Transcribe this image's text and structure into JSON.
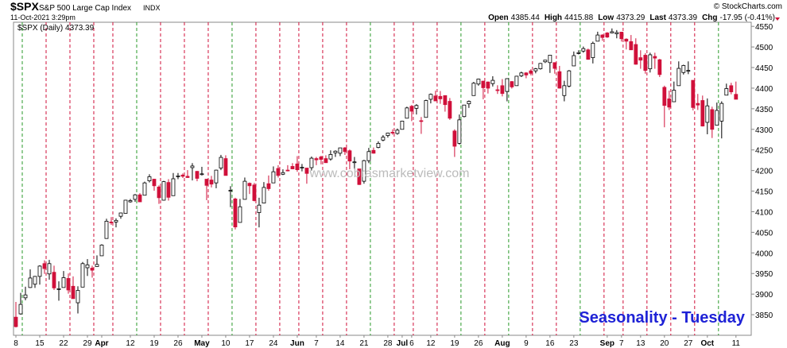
{
  "header": {
    "symbol": "$SPX",
    "name": "S&P 500 Large Cap Index",
    "exchange": "INDX",
    "date": "11-Oct-2021 3:29pm",
    "copyright": "© StockCharts.com",
    "quote": [
      {
        "label": "Open",
        "value": "4385.44"
      },
      {
        "label": "High",
        "value": "4415.88"
      },
      {
        "label": "Low",
        "value": "4373.29"
      },
      {
        "label": "Last",
        "value": "4373.39"
      },
      {
        "label": "Chg",
        "value": "-17.95 (-0.41%)"
      }
    ]
  },
  "chart_data": {
    "type": "candlestick",
    "legend": "$SPX (Daily) 4373.39",
    "watermark": "www.cobrasmarketview.com",
    "annotation": "Seasonality - Tuesday",
    "up_color": "#ffffff",
    "down_color": "#d0103a",
    "outline_color": "#000000",
    "annotation_color": "#1e22d6",
    "highlight_up_color": "#2a9a2a",
    "highlight_down_color": "#d0103a",
    "xlim": [
      -0.5,
      154.2
    ],
    "ylim": [
      3800,
      4560
    ],
    "yticks": [
      3850,
      3900,
      3950,
      4000,
      4050,
      4100,
      4150,
      4200,
      4250,
      4300,
      4350,
      4400,
      4450,
      4500,
      4550
    ],
    "xticks": [
      {
        "value": 0,
        "label": "8"
      },
      {
        "value": 5,
        "label": "15"
      },
      {
        "value": 10,
        "label": "22"
      },
      {
        "value": 15,
        "label": "29"
      },
      {
        "value": 18,
        "label": "Apr"
      },
      {
        "value": 24,
        "label": "12"
      },
      {
        "value": 29,
        "label": "19"
      },
      {
        "value": 34,
        "label": "26"
      },
      {
        "value": 39,
        "label": "May"
      },
      {
        "value": 44,
        "label": "10"
      },
      {
        "value": 49,
        "label": "17"
      },
      {
        "value": 54,
        "label": "24"
      },
      {
        "value": 59,
        "label": "Jun"
      },
      {
        "value": 63,
        "label": "7"
      },
      {
        "value": 68,
        "label": "14"
      },
      {
        "value": 73,
        "label": "21"
      },
      {
        "value": 78,
        "label": "28"
      },
      {
        "value": 81,
        "label": "Jul"
      },
      {
        "value": 83,
        "label": "6"
      },
      {
        "value": 87,
        "label": "12"
      },
      {
        "value": 92,
        "label": "19"
      },
      {
        "value": 97,
        "label": "26"
      },
      {
        "value": 102,
        "label": "Aug"
      },
      {
        "value": 107,
        "label": "9"
      },
      {
        "value": 112,
        "label": "16"
      },
      {
        "value": 117,
        "label": "23"
      },
      {
        "value": 124,
        "label": "Sep"
      },
      {
        "value": 127,
        "label": "7"
      },
      {
        "value": 131,
        "label": "13"
      },
      {
        "value": 136,
        "label": "20"
      },
      {
        "value": 141,
        "label": "27"
      },
      {
        "value": 145,
        "label": "Oct"
      },
      {
        "value": 151,
        "label": "11"
      }
    ],
    "highlight_days": [
      1,
      6,
      11,
      16,
      20,
      25,
      30,
      35,
      40,
      45,
      50,
      55,
      59,
      64,
      69,
      74,
      79,
      83,
      88,
      93,
      98,
      103,
      108,
      113,
      118,
      123,
      127,
      132,
      137,
      142,
      147
    ],
    "candles": [
      [
        3844,
        3881,
        3819,
        3821
      ],
      [
        3852,
        3903,
        3850,
        3875
      ],
      [
        3891,
        3918,
        3885,
        3898
      ],
      [
        3916,
        3960,
        3915,
        3939
      ],
      [
        3924,
        3944,
        3915,
        3943
      ],
      [
        3943,
        3970,
        3923,
        3968
      ],
      [
        3974,
        3982,
        3949,
        3962
      ],
      [
        3949,
        3983,
        3935,
        3974
      ],
      [
        3953,
        3969,
        3910,
        3915
      ],
      [
        3913,
        3931,
        3884,
        3913
      ],
      [
        3916,
        3956,
        3916,
        3940
      ],
      [
        3938,
        3950,
        3901,
        3910
      ],
      [
        3919,
        3943,
        3889,
        3889
      ],
      [
        3879,
        3919,
        3853,
        3909
      ],
      [
        3917,
        3978,
        3917,
        3974
      ],
      [
        3964,
        3985,
        3944,
        3971
      ],
      [
        3963,
        3969,
        3940,
        3958
      ],
      [
        3967,
        3994,
        3967,
        3972
      ],
      [
        3993,
        4021,
        3993,
        4019
      ],
      [
        4035,
        4083,
        4035,
        4077
      ],
      [
        4075,
        4087,
        4068,
        4073
      ],
      [
        4075,
        4084,
        4062,
        4079
      ],
      [
        4089,
        4098,
        4083,
        4097
      ],
      [
        4096,
        4129,
        4095,
        4128
      ],
      [
        4124,
        4131,
        4122,
        4127
      ],
      [
        4130,
        4143,
        4124,
        4141
      ],
      [
        4141,
        4145,
        4124,
        4124
      ],
      [
        4140,
        4173,
        4140,
        4170
      ],
      [
        4175,
        4191,
        4171,
        4185
      ],
      [
        4179,
        4180,
        4151,
        4163
      ],
      [
        4160,
        4164,
        4119,
        4134
      ],
      [
        4128,
        4175,
        4127,
        4173
      ],
      [
        4171,
        4179,
        4127,
        4135
      ],
      [
        4139,
        4194,
        4139,
        4180
      ],
      [
        4185,
        4194,
        4179,
        4187
      ],
      [
        4189,
        4193,
        4182,
        4186
      ],
      [
        4186,
        4201,
        4182,
        4183
      ],
      [
        4207,
        4218,
        4176,
        4211
      ],
      [
        4198,
        4199,
        4174,
        4181
      ],
      [
        4192,
        4209,
        4188,
        4192
      ],
      [
        4179,
        4179,
        4128,
        4164
      ],
      [
        4177,
        4187,
        4159,
        4167
      ],
      [
        4170,
        4202,
        4157,
        4201
      ],
      [
        4206,
        4238,
        4201,
        4232
      ],
      [
        4229,
        4237,
        4188,
        4188
      ],
      [
        4150,
        4162,
        4111,
        4152
      ],
      [
        4131,
        4134,
        4057,
        4063
      ],
      [
        4074,
        4131,
        4074,
        4112
      ],
      [
        4130,
        4183,
        4130,
        4174
      ],
      [
        4169,
        4171,
        4143,
        4163
      ],
      [
        4165,
        4170,
        4125,
        4127
      ],
      [
        4098,
        4134,
        4062,
        4116
      ],
      [
        4121,
        4172,
        4121,
        4159
      ],
      [
        4168,
        4188,
        4151,
        4156
      ],
      [
        4170,
        4210,
        4170,
        4197
      ],
      [
        4205,
        4213,
        4183,
        4188
      ],
      [
        4191,
        4203,
        4189,
        4195
      ],
      [
        4201,
        4213,
        4198,
        4200
      ],
      [
        4210,
        4218,
        4203,
        4204
      ],
      [
        4216,
        4235,
        4197,
        4202
      ],
      [
        4206,
        4216,
        4198,
        4208
      ],
      [
        4206,
        4206,
        4168,
        4193
      ],
      [
        4207,
        4234,
        4200,
        4230
      ],
      [
        4229,
        4233,
        4213,
        4226
      ],
      [
        4233,
        4236,
        4215,
        4227
      ],
      [
        4229,
        4237,
        4219,
        4219
      ],
      [
        4228,
        4249,
        4224,
        4239
      ],
      [
        4243,
        4249,
        4233,
        4247
      ],
      [
        4242,
        4255,
        4235,
        4255
      ],
      [
        4255,
        4257,
        4238,
        4246
      ],
      [
        4248,
        4251,
        4203,
        4223
      ],
      [
        4220,
        4233,
        4204,
        4221
      ],
      [
        4204,
        4204,
        4165,
        4166
      ],
      [
        4174,
        4226,
        4168,
        4224
      ],
      [
        4224,
        4255,
        4218,
        4246
      ],
      [
        4249,
        4256,
        4241,
        4242
      ],
      [
        4256,
        4271,
        4254,
        4266
      ],
      [
        4274,
        4286,
        4271,
        4281
      ],
      [
        4285,
        4292,
        4280,
        4291
      ],
      [
        4293,
        4300,
        4287,
        4291
      ],
      [
        4290,
        4302,
        4287,
        4298
      ],
      [
        4300,
        4321,
        4300,
        4320
      ],
      [
        4327,
        4355,
        4327,
        4352
      ],
      [
        4356,
        4359,
        4320,
        4344
      ],
      [
        4351,
        4361,
        4336,
        4358
      ],
      [
        4321,
        4330,
        4289,
        4320
      ],
      [
        4329,
        4372,
        4329,
        4370
      ],
      [
        4373,
        4387,
        4363,
        4385
      ],
      [
        4381,
        4394,
        4369,
        4369
      ],
      [
        4380,
        4393,
        4362,
        4374
      ],
      [
        4382,
        4382,
        4343,
        4360
      ],
      [
        4368,
        4376,
        4323,
        4327
      ],
      [
        4296,
        4300,
        4233,
        4259
      ],
      [
        4266,
        4336,
        4263,
        4323
      ],
      [
        4331,
        4359,
        4329,
        4359
      ],
      [
        4362,
        4370,
        4352,
        4368
      ],
      [
        4382,
        4415,
        4382,
        4412
      ],
      [
        4410,
        4423,
        4406,
        4422
      ],
      [
        4417,
        4418,
        4373,
        4401
      ],
      [
        4415,
        4416,
        4387,
        4400
      ],
      [
        4411,
        4429,
        4404,
        4419
      ],
      [
        4396,
        4407,
        4386,
        4395
      ],
      [
        4406,
        4422,
        4380,
        4387
      ],
      [
        4392,
        4424,
        4368,
        4423
      ],
      [
        4416,
        4417,
        4399,
        4403
      ],
      [
        4406,
        4430,
        4406,
        4429
      ],
      [
        4430,
        4440,
        4427,
        4437
      ],
      [
        4437,
        4439,
        4424,
        4432
      ],
      [
        4442,
        4446,
        4431,
        4436
      ],
      [
        4442,
        4449,
        4436,
        4447
      ],
      [
        4447,
        4461,
        4445,
        4460
      ],
      [
        4464,
        4468,
        4461,
        4468
      ],
      [
        4462,
        4480,
        4437,
        4480
      ],
      [
        4462,
        4462,
        4435,
        4448
      ],
      [
        4440,
        4454,
        4399,
        4400
      ],
      [
        4382,
        4418,
        4368,
        4406
      ],
      [
        4405,
        4444,
        4402,
        4442
      ],
      [
        4454,
        4489,
        4454,
        4479
      ],
      [
        4484,
        4492,
        4482,
        4486
      ],
      [
        4490,
        4501,
        4486,
        4496
      ],
      [
        4493,
        4496,
        4469,
        4470
      ],
      [
        4474,
        4513,
        4460,
        4509
      ],
      [
        4514,
        4537,
        4514,
        4529
      ],
      [
        4529,
        4531,
        4515,
        4523
      ],
      [
        4534,
        4536,
        4522,
        4524
      ],
      [
        4534,
        4545,
        4533,
        4537
      ],
      [
        4532,
        4541,
        4521,
        4535
      ],
      [
        4536,
        4536,
        4513,
        4520
      ],
      [
        4519,
        4521,
        4494,
        4514
      ],
      [
        4513,
        4529,
        4493,
        4493
      ],
      [
        4506,
        4521,
        4457,
        4458
      ],
      [
        4474,
        4492,
        4447,
        4468
      ],
      [
        4480,
        4485,
        4435,
        4443
      ],
      [
        4447,
        4486,
        4438,
        4481
      ],
      [
        4477,
        4486,
        4447,
        4473
      ],
      [
        4469,
        4471,
        4427,
        4433
      ],
      [
        4402,
        4406,
        4305,
        4358
      ],
      [
        4374,
        4394,
        4347,
        4354
      ],
      [
        4367,
        4416,
        4367,
        4395
      ],
      [
        4406,
        4465,
        4406,
        4448
      ],
      [
        4438,
        4457,
        4433,
        4455
      ],
      [
        4443,
        4465,
        4434,
        4443
      ],
      [
        4419,
        4419,
        4346,
        4353
      ],
      [
        4363,
        4386,
        4347,
        4359
      ],
      [
        4370,
        4382,
        4307,
        4308
      ],
      [
        4317,
        4375,
        4288,
        4357
      ],
      [
        4348,
        4355,
        4279,
        4300
      ],
      [
        4310,
        4365,
        4310,
        4346
      ],
      [
        4320,
        4368,
        4278,
        4363
      ],
      [
        4383,
        4411,
        4383,
        4399
      ],
      [
        4406,
        4413,
        4385,
        4391
      ],
      [
        4385,
        4416,
        4373,
        4373
      ]
    ]
  }
}
